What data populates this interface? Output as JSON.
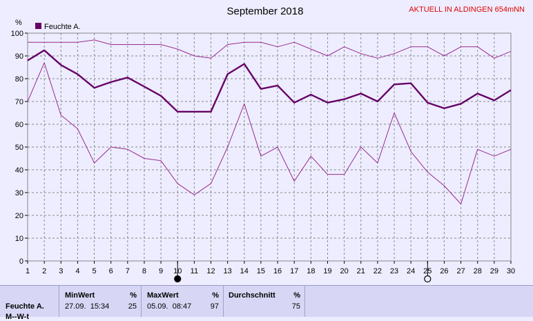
{
  "header": {
    "title": "September 2018",
    "station": "AKTUELL IN ALDINGEN 654mNN"
  },
  "legend": {
    "label": "Feuchte A.",
    "color": "#660066"
  },
  "chart_data": {
    "type": "line",
    "title": "September 2018",
    "ylabel": "%",
    "xlabel": "",
    "xlim": [
      1,
      30
    ],
    "ylim": [
      0,
      100
    ],
    "x_ticks": [
      1,
      2,
      3,
      4,
      5,
      6,
      7,
      8,
      9,
      10,
      11,
      12,
      13,
      14,
      15,
      16,
      17,
      18,
      19,
      20,
      21,
      22,
      23,
      24,
      25,
      26,
      27,
      28,
      29,
      30
    ],
    "y_ticks": [
      0,
      10,
      20,
      30,
      40,
      50,
      60,
      70,
      80,
      90,
      100
    ],
    "grid": true,
    "legend_position": "top-left",
    "markers": [
      {
        "day": 10,
        "symbol": "new-moon"
      },
      {
        "day": 25,
        "symbol": "full-moon"
      }
    ],
    "series": [
      {
        "name": "Feuchte A.",
        "role": "max",
        "color": "#9a2a8e",
        "x": [
          1,
          2,
          3,
          4,
          5,
          6,
          7,
          8,
          9,
          10,
          11,
          12,
          13,
          14,
          15,
          16,
          17,
          18,
          19,
          20,
          21,
          22,
          23,
          24,
          25,
          26,
          27,
          28,
          29,
          30
        ],
        "y": [
          96,
          96,
          96,
          96,
          97,
          95,
          95,
          95,
          95,
          93,
          90,
          89,
          95,
          96,
          96,
          94,
          96,
          93,
          90,
          94,
          91,
          89,
          91,
          94,
          94,
          90,
          94,
          94,
          89,
          92
        ]
      },
      {
        "name": "Feuchte A.",
        "role": "avg",
        "color": "#660066",
        "x": [
          1,
          2,
          3,
          4,
          5,
          6,
          7,
          8,
          9,
          10,
          11,
          12,
          13,
          14,
          15,
          16,
          17,
          18,
          19,
          20,
          21,
          22,
          23,
          24,
          25,
          26,
          27,
          28,
          29,
          30
        ],
        "y": [
          88,
          92.5,
          86,
          82,
          76,
          78.5,
          80.5,
          76.5,
          72.5,
          65.5,
          65.5,
          65.5,
          82,
          86.5,
          75.5,
          77,
          69.5,
          73,
          69.5,
          71,
          73.5,
          70,
          77.5,
          78,
          69.5,
          67,
          69,
          73.5,
          70.5,
          75
        ]
      },
      {
        "name": "Feuchte A.",
        "role": "min",
        "color": "#9a2a8e",
        "x": [
          1,
          2,
          3,
          4,
          5,
          6,
          7,
          8,
          9,
          10,
          11,
          12,
          13,
          14,
          15,
          16,
          17,
          18,
          19,
          20,
          21,
          22,
          23,
          24,
          25,
          26,
          27,
          28,
          29,
          30
        ],
        "y": [
          70,
          87,
          64,
          58,
          43,
          50,
          49,
          45,
          44,
          34,
          29,
          34,
          50,
          69,
          46,
          50,
          35,
          46,
          38,
          38,
          50,
          43,
          65,
          48,
          39,
          33,
          25,
          49,
          46,
          49
        ]
      }
    ]
  },
  "stats": {
    "row_label": "Feuchte A.",
    "row_label_2": "M--W-t",
    "min": {
      "label": "MinWert",
      "unit": "%",
      "datetime": "27.09.  15:34",
      "value": "25"
    },
    "max": {
      "label": "MaxWert",
      "unit": "%",
      "datetime": "05.09.  08:47",
      "value": "97"
    },
    "avg": {
      "label": "Durchschnitt",
      "unit": "%",
      "value": "75"
    }
  }
}
